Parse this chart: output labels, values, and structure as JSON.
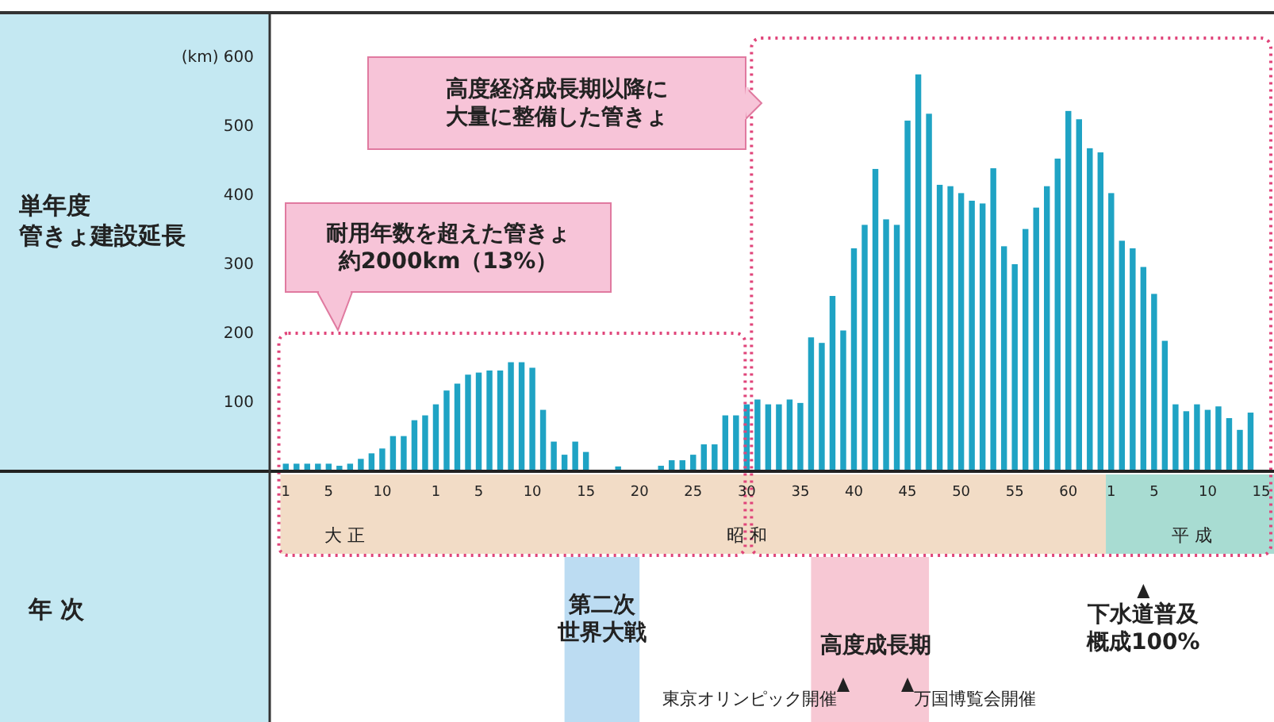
{
  "chart_data": {
    "type": "bar",
    "ylabel": "単年度管きょ建設延長",
    "color": "#1fa3c4",
    "categories": [
      "1",
      null,
      null,
      null,
      "5",
      null,
      null,
      null,
      null,
      "10",
      null,
      null,
      null,
      null,
      "1",
      null,
      null,
      null,
      "5",
      null,
      null,
      null,
      null,
      "10",
      null,
      null,
      null,
      null,
      "15",
      null,
      null,
      null,
      null,
      "20",
      null,
      null,
      null,
      null,
      "25",
      null,
      null,
      null,
      null,
      "30",
      null,
      null,
      null,
      null,
      "35",
      null,
      null,
      null,
      null,
      "40",
      null,
      null,
      null,
      null,
      "45",
      null,
      null,
      null,
      null,
      "50",
      null,
      null,
      null,
      null,
      "55",
      null,
      null,
      null,
      null,
      "60",
      null,
      null,
      null,
      "1",
      null,
      null,
      null,
      "5",
      null,
      null,
      null,
      null,
      "10",
      null,
      null,
      null,
      null,
      "15"
    ],
    "values": [
      11,
      11,
      11,
      11,
      11,
      8,
      11,
      18,
      26,
      33,
      51,
      51,
      74,
      81,
      97,
      117,
      127,
      140,
      143,
      146,
      146,
      158,
      158,
      150,
      89,
      43,
      24,
      43,
      28,
      null,
      null,
      7,
      null,
      null,
      null,
      8,
      16,
      16,
      24,
      39,
      39,
      81,
      81,
      97,
      104,
      97,
      97,
      104,
      99,
      194,
      186,
      254,
      204,
      323,
      357,
      438,
      365,
      357,
      508,
      575,
      518,
      415,
      413,
      403,
      392,
      388,
      439,
      326,
      300,
      351,
      382,
      413,
      453,
      522,
      510,
      468,
      462,
      403,
      334,
      323,
      296,
      257,
      189,
      97,
      87,
      97,
      89,
      94,
      77,
      60,
      85,
      null
    ],
    "ylim": [
      0,
      600
    ],
    "yticks": [
      100,
      200,
      300,
      400,
      500,
      {
        "value": 600,
        "label": "(km) 600"
      }
    ],
    "annotations": [
      "耐用年数を超えた管きょ約2000km（13%）",
      "高度経済成長期以降に大量に整備した管きょ",
      "大 正",
      "昭 和",
      "平 成",
      "第二次世界大戦",
      "高度成長期",
      "東京オリンピック開催",
      "万国博覧会開催",
      "下水道普及概成100%",
      "年 次"
    ]
  }
}
